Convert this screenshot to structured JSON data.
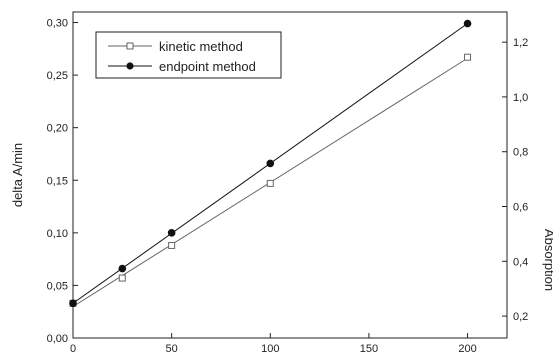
{
  "chart_data": {
    "type": "scatter",
    "title": "",
    "xlabel": "",
    "ylabel": "delta A/min",
    "y2label": "Absorption",
    "xlim": [
      0,
      220
    ],
    "ylim": [
      0.0,
      0.31
    ],
    "y2lim": [
      0.12,
      1.31
    ],
    "x_ticks": [
      0,
      50,
      100,
      150,
      200
    ],
    "x_tick_labels": [
      "0",
      "50",
      "100",
      "150",
      "200"
    ],
    "y_ticks": [
      0.0,
      0.05,
      0.1,
      0.15,
      0.2,
      0.25,
      0.3
    ],
    "y_tick_labels": [
      "0,00",
      "0,05",
      "0,10",
      "0,15",
      "0,20",
      "0,25",
      "0,30"
    ],
    "y2_ticks": [
      0.2,
      0.4,
      0.6,
      0.8,
      1.0,
      1.2
    ],
    "y2_tick_labels": [
      "0,2",
      "0,4",
      "0,6",
      "0,8",
      "1,0",
      "1,2"
    ],
    "grid": false,
    "legend_position": "top-left",
    "series": [
      {
        "name": "kinetic method",
        "axis": "left",
        "marker": "open-square",
        "line": true,
        "x": [
          0,
          25,
          50,
          100,
          200
        ],
        "y": [
          0.033,
          0.057,
          0.088,
          0.147,
          0.267
        ]
      },
      {
        "name": "endpoint method",
        "axis": "left",
        "marker": "filled-circle",
        "line": true,
        "x": [
          0,
          25,
          50,
          100,
          200
        ],
        "y": [
          0.033,
          0.066,
          0.1,
          0.166,
          0.299
        ]
      }
    ],
    "colors": {
      "axis": "#222222",
      "kinetic": "#666666",
      "endpoint": "#111111"
    }
  }
}
